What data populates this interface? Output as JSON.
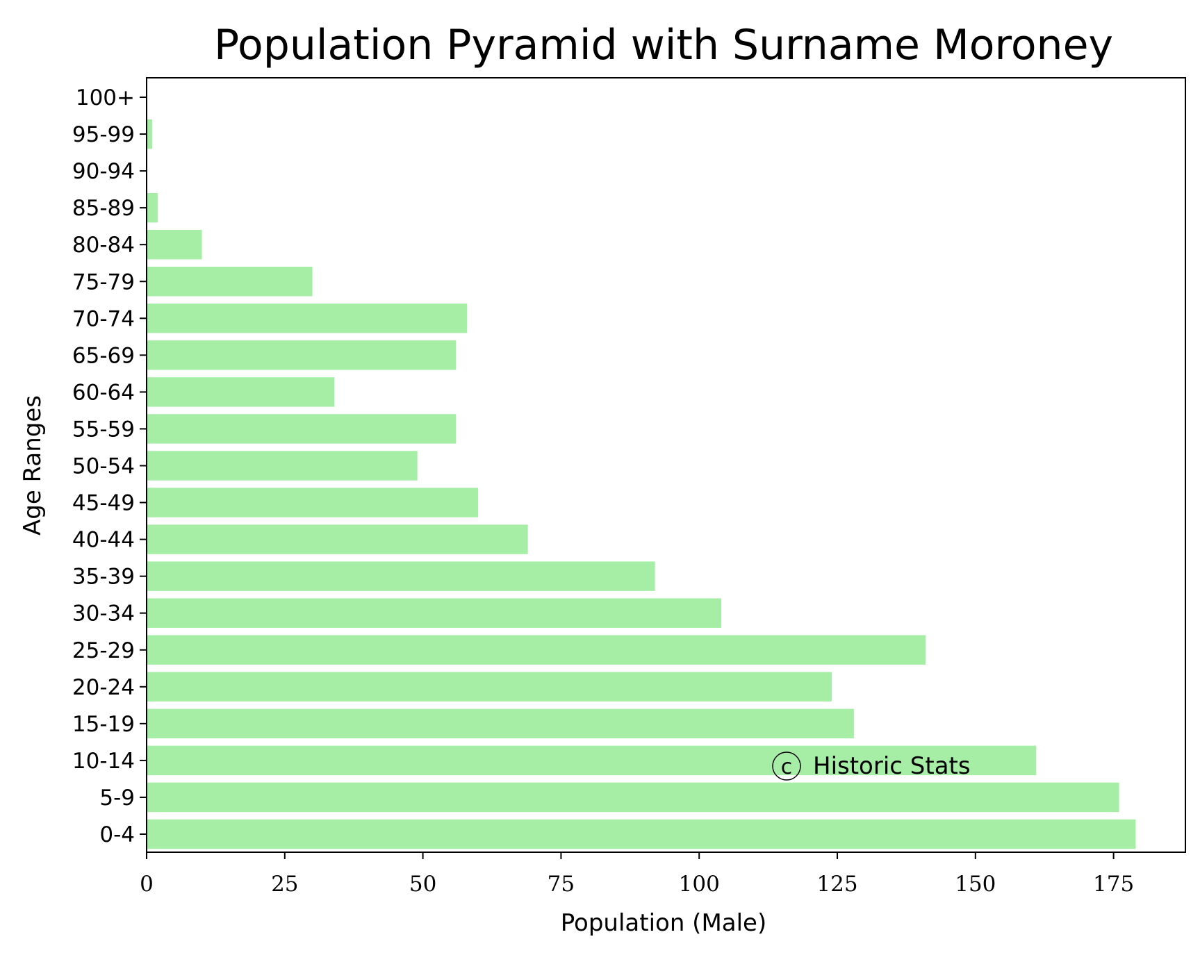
{
  "chart_data": {
    "type": "bar",
    "orientation": "horizontal",
    "title": "Population Pyramid with Surname Moroney",
    "xlabel": "Population (Male)",
    "ylabel": "Age Ranges",
    "categories": [
      "0-4",
      "5-9",
      "10-14",
      "15-19",
      "20-24",
      "25-29",
      "30-34",
      "35-39",
      "40-44",
      "45-49",
      "50-54",
      "55-59",
      "60-64",
      "65-69",
      "70-74",
      "75-79",
      "80-84",
      "85-89",
      "90-94",
      "95-99",
      "100+"
    ],
    "values": [
      179,
      176,
      161,
      128,
      124,
      141,
      104,
      92,
      69,
      60,
      49,
      56,
      34,
      56,
      58,
      30,
      10,
      2,
      0,
      1,
      0
    ],
    "xlim": [
      0,
      188
    ],
    "xticks": [
      0,
      25,
      50,
      75,
      100,
      125,
      150,
      175
    ],
    "grid": false,
    "bar_color": "#a6eea6",
    "watermark": "Historic Stats",
    "watermark_symbol": "c"
  }
}
